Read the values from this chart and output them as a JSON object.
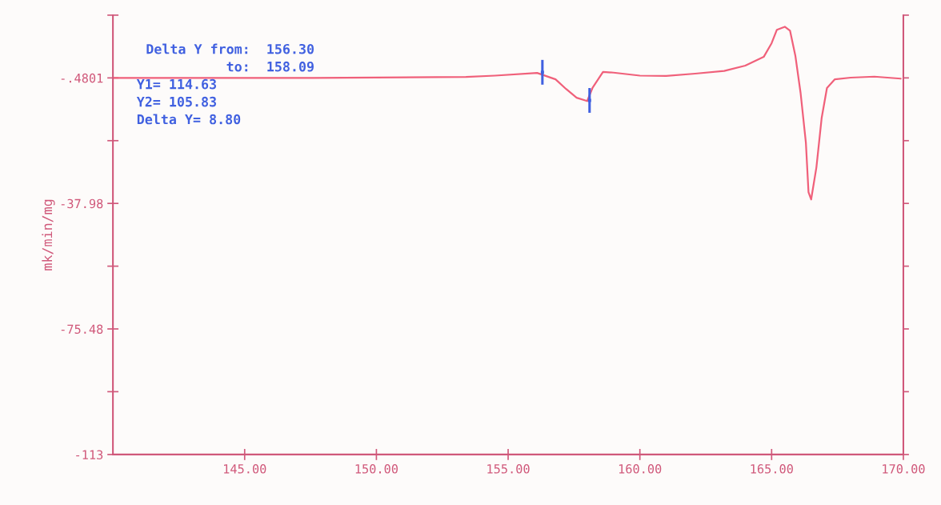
{
  "chart_data": {
    "type": "line",
    "ylabel": "mk/min/mg",
    "xlim": [
      140,
      170
    ],
    "ylim": [
      -113,
      18.27
    ],
    "xticks": [
      {
        "value": 145,
        "label": "145.00"
      },
      {
        "value": 150,
        "label": "150.00"
      },
      {
        "value": 155,
        "label": "155.00"
      },
      {
        "value": 160,
        "label": "160.00"
      },
      {
        "value": 165,
        "label": "165.00"
      },
      {
        "value": 170,
        "label": "170.00"
      }
    ],
    "yticks": [
      {
        "value": 18.27,
        "label": null
      },
      {
        "value": -0.4801,
        "label": "-.4801"
      },
      {
        "value": -19.23,
        "label": null
      },
      {
        "value": -37.98,
        "label": "-37.98"
      },
      {
        "value": -56.73,
        "label": null
      },
      {
        "value": -75.48,
        "label": "-75.48"
      },
      {
        "value": -94.23,
        "label": null
      },
      {
        "value": -113,
        "label": "-113"
      }
    ],
    "series": [
      {
        "color": "#f0607a",
        "x": [
          140.0,
          147.6,
          153.4,
          154.5,
          156.1,
          156.8,
          157.2,
          157.6,
          158.0,
          158.2,
          158.6,
          159.0,
          160.0,
          161.0,
          162.1,
          163.2,
          164.0,
          164.7,
          165.0,
          165.2,
          165.5,
          165.7,
          165.9,
          166.1,
          166.3,
          166.4,
          166.5,
          166.7,
          166.9,
          167.1,
          167.4,
          168.0,
          168.9,
          169.9
        ],
        "values": [
          -0.5,
          -0.5,
          -0.2,
          0.2,
          1.0,
          -0.9,
          -3.8,
          -6.4,
          -7.4,
          -3.5,
          1.3,
          1.1,
          0.2,
          0.1,
          0.8,
          1.6,
          3.2,
          5.8,
          9.9,
          13.9,
          14.8,
          13.6,
          6.2,
          -5.0,
          -19.8,
          -34.6,
          -36.8,
          -27.2,
          -12.4,
          -3.5,
          -0.9,
          -0.4,
          -0.1,
          -0.7
        ]
      },
      {
        "type": "scatter",
        "color": "#4060e0",
        "marker": "square",
        "x": [
          156.3,
          158.09
        ],
        "values": [
          1.2,
          -7.2
        ],
        "errors": [
          3.7,
          3.7
        ]
      }
    ],
    "annotations": [
      "Delta Y from:  156.30",
      "to:  158.09",
      "Y1= 114.63",
      "Y2= 105.83",
      "Delta Y= 8.80"
    ]
  }
}
